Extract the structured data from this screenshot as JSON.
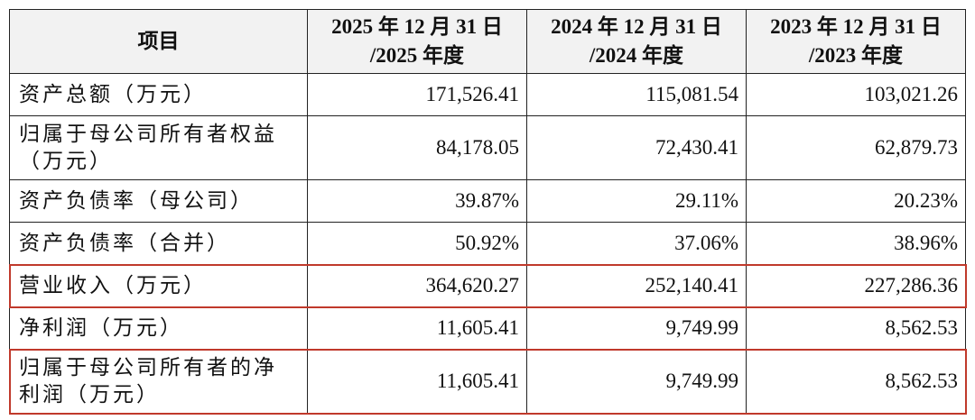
{
  "table": {
    "header": [
      "项目",
      "2025 年 12 月 31 日\n/2025 年度",
      "2024 年 12 月 31 日\n/2024 年度",
      "2023 年 12 月 31 日\n/2023 年度"
    ],
    "rows": [
      [
        "资产总额（万元）",
        "171,526.41",
        "115,081.54",
        "103,021.26"
      ],
      [
        "归属于母公司所有者权益（万元）",
        "84,178.05",
        "72,430.41",
        "62,879.73"
      ],
      [
        "资产负债率（母公司）",
        "39.87%",
        "29.11%",
        "20.23%"
      ],
      [
        "资产负债率（合并）",
        "50.92%",
        "37.06%",
        "38.96%"
      ],
      [
        "营业收入（万元）",
        "364,620.27",
        "252,140.41",
        "227,286.36"
      ],
      [
        "净利润（万元）",
        "11,605.41",
        "9,749.99",
        "8,562.53"
      ],
      [
        "归属于母公司所有者的净利润（万元）",
        "11,605.41",
        "9,749.99",
        "8,562.53"
      ]
    ]
  }
}
